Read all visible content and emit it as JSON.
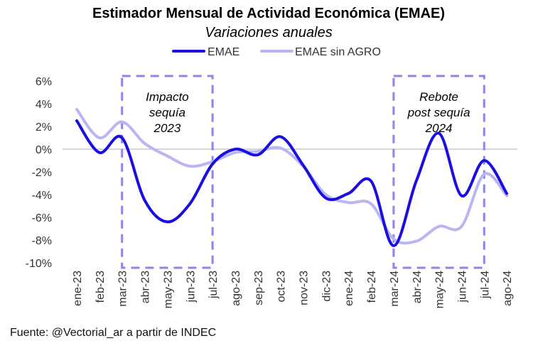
{
  "chart_data": {
    "type": "line",
    "title": "Estimador Mensual de Actividad Económica (EMAE)",
    "subtitle": "Variaciones anuales",
    "x": [
      "ene-23",
      "feb-23",
      "mar-23",
      "abr-23",
      "may-23",
      "jun-23",
      "jul-23",
      "ago-23",
      "sep-23",
      "oct-23",
      "nov-23",
      "dic-23",
      "ene-24",
      "feb-24",
      "mar-24",
      "abr-24",
      "may-24",
      "jun-24",
      "jul-24",
      "ago-24"
    ],
    "series": [
      {
        "name": "EMAE",
        "color": "#1a0fe0",
        "values": [
          2.5,
          -0.3,
          1.0,
          -4.5,
          -6.4,
          -4.8,
          -1.3,
          0.0,
          -0.5,
          1.1,
          -1.4,
          -4.3,
          -3.9,
          -2.8,
          -8.5,
          -2.8,
          1.4,
          -4.1,
          -1.0,
          -3.9
        ]
      },
      {
        "name": "EMAE sin AGRO",
        "color": "#b9b6f2",
        "values": [
          3.5,
          1.0,
          2.4,
          0.5,
          -0.6,
          -1.5,
          -1.1,
          -0.3,
          -0.2,
          0.1,
          -1.5,
          -4.0,
          -4.7,
          -4.8,
          -7.9,
          -8.1,
          -6.8,
          -6.8,
          -2.2,
          -4.1
        ]
      }
    ],
    "yticks": [
      "6%",
      "4%",
      "2%",
      "0%",
      "-2%",
      "-4%",
      "-6%",
      "-8%",
      "-10%"
    ],
    "ylim": [
      -10,
      6
    ],
    "legend_position": "top-center",
    "annotations": [
      {
        "lines": [
          "Impacto",
          "sequía",
          "2023"
        ],
        "x_start": "mar-23",
        "x_end": "jul-23"
      },
      {
        "lines": [
          "Rebote",
          "post sequía",
          "2024"
        ],
        "x_start": "mar-24",
        "x_end": "jul-24"
      }
    ],
    "box_color": "#8a86ea",
    "zero_line_color": "#bfbfbf"
  },
  "source": "Fuente: @Vectorial_ar a partir de INDEC"
}
